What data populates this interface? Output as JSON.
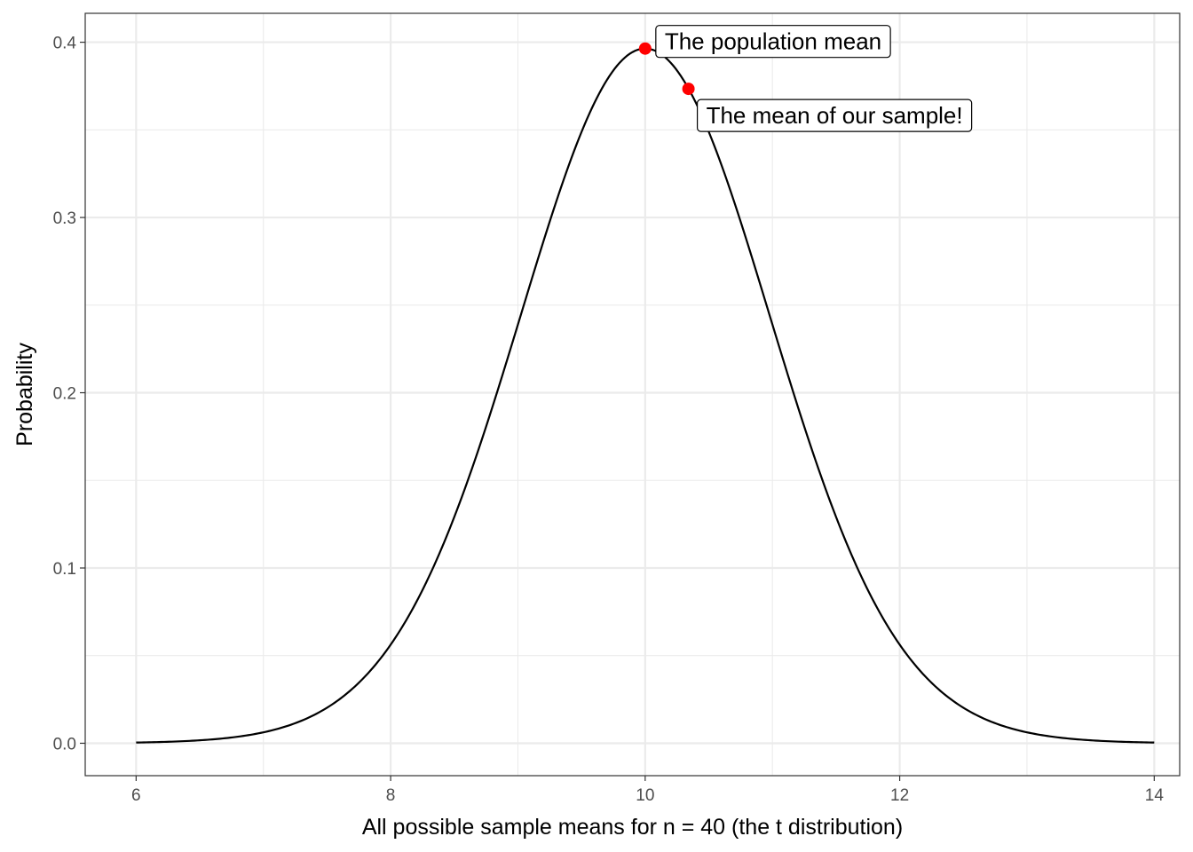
{
  "chart_data": {
    "type": "line",
    "title": "",
    "xlabel": "All possible sample means for n = 40 (the t distribution)",
    "ylabel": "Probability",
    "xlim": [
      5.6,
      14.2
    ],
    "ylim": [
      -0.0185,
      0.4165
    ],
    "x_ticks": [
      6,
      8,
      10,
      12,
      14
    ],
    "x_tick_labels": [
      "6",
      "8",
      "10",
      "12",
      "14"
    ],
    "x_minor_ticks": [
      7,
      9,
      11,
      13
    ],
    "y_ticks": [
      0.0,
      0.1,
      0.2,
      0.3,
      0.4
    ],
    "y_tick_labels": [
      "0.0",
      "0.1",
      "0.2",
      "0.3",
      "0.4"
    ],
    "y_minor_ticks": [
      0.05,
      0.15,
      0.25,
      0.35
    ],
    "grid": true,
    "series": [
      {
        "distribution": "t",
        "df": 39,
        "location": 10,
        "x_range": [
          6,
          14
        ],
        "color": "#000000"
      }
    ],
    "annotations": [
      {
        "x": 10.0,
        "y": 0.3964,
        "label": "The population mean",
        "point_color": "#ff0000",
        "position": "right"
      },
      {
        "x": 10.34,
        "y": 0.3734,
        "label": "The mean of our sample!",
        "point_color": "#ff0000",
        "position": "below-right"
      }
    ]
  }
}
